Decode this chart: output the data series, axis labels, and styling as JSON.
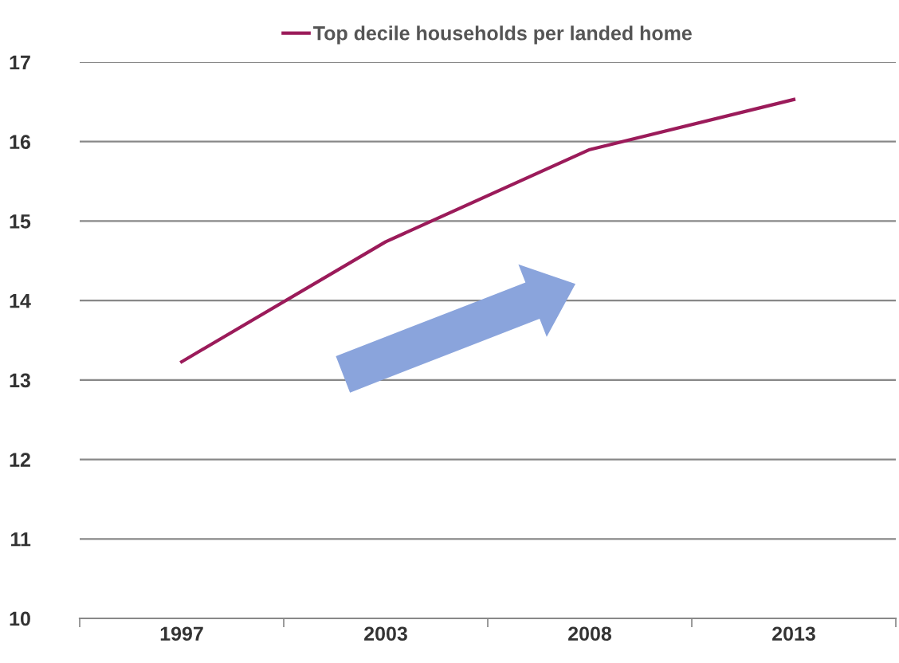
{
  "chart_data": {
    "type": "line",
    "categories": [
      "1997",
      "2003",
      "2008",
      "2013"
    ],
    "series": [
      {
        "name": "Top decile households per landed home",
        "color": "#9b1b5a",
        "values": [
          13.23,
          14.74,
          15.9,
          16.53
        ]
      }
    ],
    "ylim": [
      10,
      17
    ],
    "yticks": [
      10,
      11,
      12,
      13,
      14,
      15,
      16,
      17
    ],
    "grid": "y",
    "legend": "top",
    "marker": "none",
    "line_style": "solid"
  }
}
